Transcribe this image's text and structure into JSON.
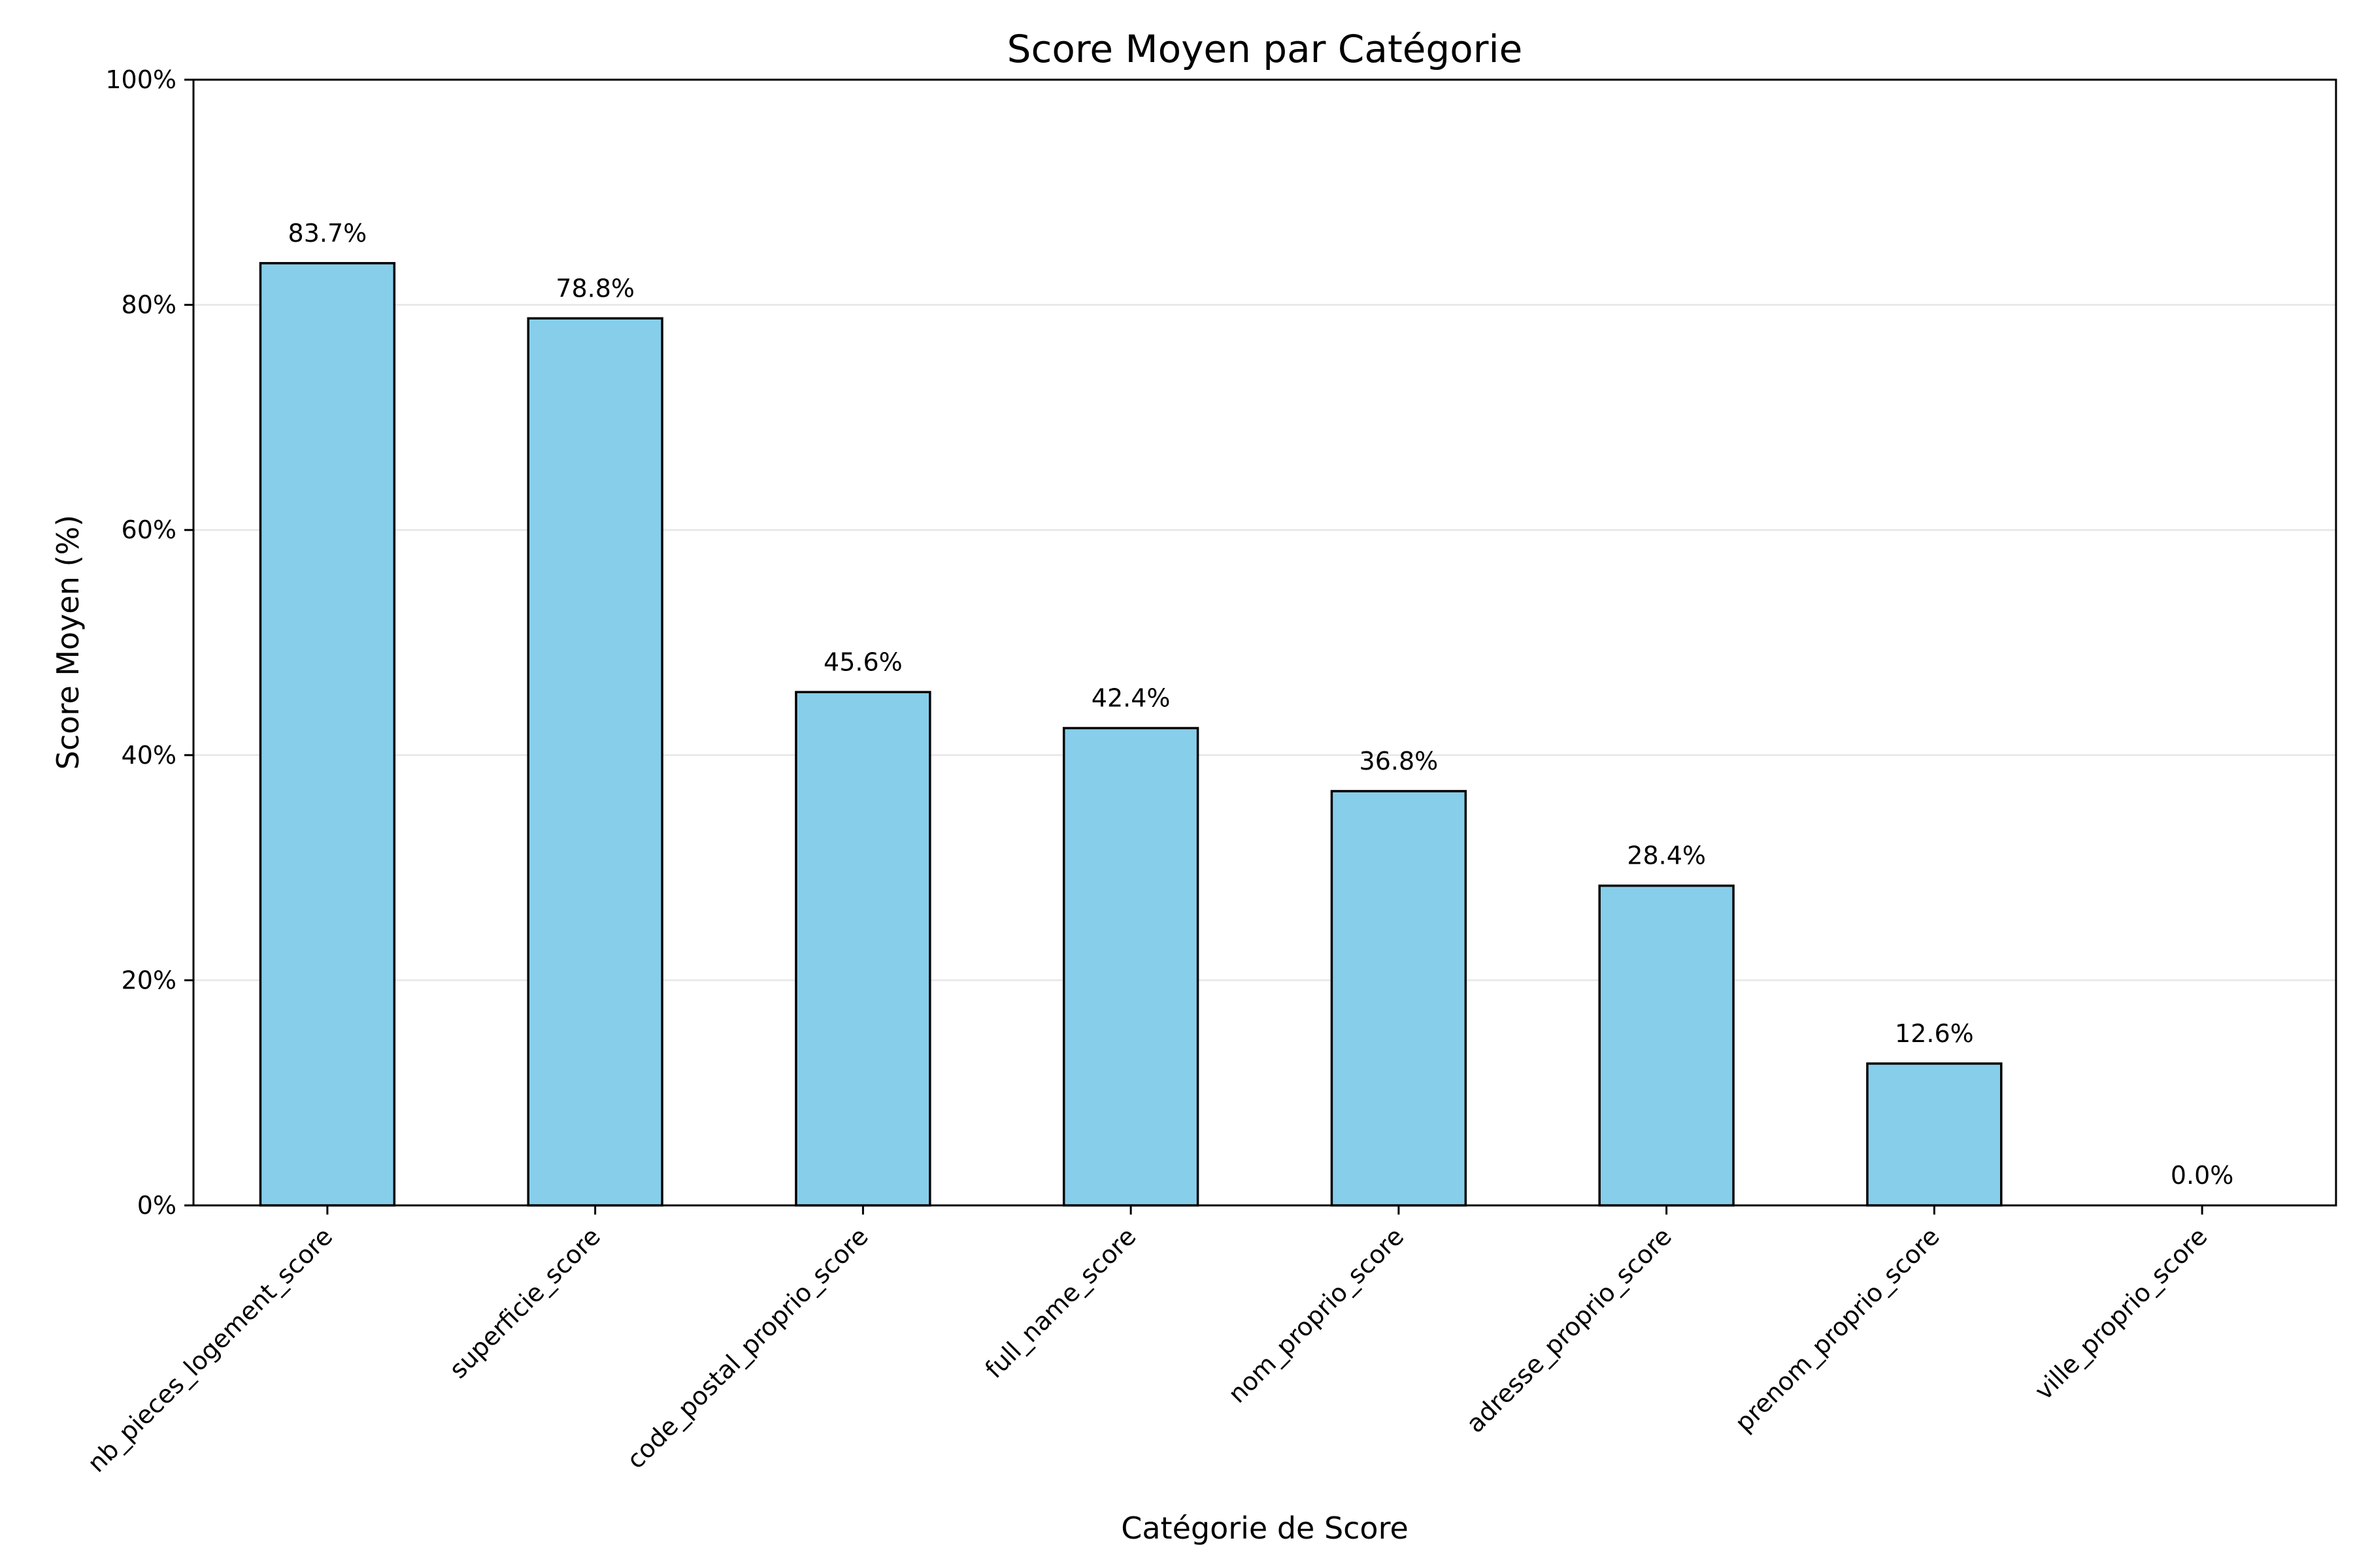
{
  "chart_data": {
    "type": "bar",
    "title": "Score Moyen par Catégorie",
    "xlabel": "Catégorie de Score",
    "ylabel": "Score Moyen (%)",
    "categories": [
      "nb_pieces_logement_score",
      "superficie_score",
      "code_postal_proprio_score",
      "full_name_score",
      "nom_proprio_score",
      "adresse_proprio_score",
      "prenom_proprio_score",
      "ville_proprio_score"
    ],
    "values": [
      83.7,
      78.8,
      45.6,
      42.4,
      36.8,
      28.4,
      12.6,
      0.0
    ],
    "data_labels": [
      "83.7%",
      "78.8%",
      "45.6%",
      "42.4%",
      "36.8%",
      "28.4%",
      "12.6%",
      "0.0%"
    ],
    "ylim": [
      0,
      100
    ],
    "yticks": [
      0,
      20,
      40,
      60,
      80,
      100
    ],
    "ytick_labels": [
      "0%",
      "20%",
      "40%",
      "60%",
      "80%",
      "100%"
    ],
    "grid": "horizontal",
    "colors": {
      "bar_fill": "#87CEEB",
      "bar_edge": "#000000",
      "grid": "#e6e6e6"
    }
  }
}
